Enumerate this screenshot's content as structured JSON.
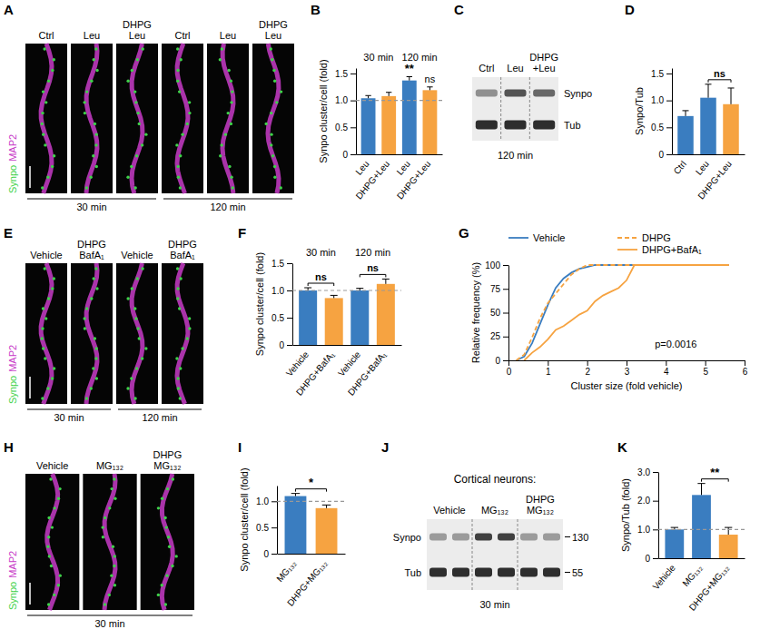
{
  "chart_data": [
    {
      "type": "bar",
      "ylabel": "Synpo cluster/cell (fold)",
      "categories": [
        "Leu",
        "DHPG+Leu",
        "Leu",
        "DHPG+Leu"
      ],
      "values": [
        1.04,
        1.08,
        1.37,
        1.19
      ],
      "errors": [
        0.05,
        0.07,
        0.07,
        0.06
      ],
      "colors": [
        "#3a7dc0",
        "#f6a341",
        "#3a7dc0",
        "#f6a341"
      ],
      "ylim": [
        0,
        1.6
      ],
      "yticks": [
        0,
        0.5,
        {
          "value": 1,
          "label": "1.0"
        },
        1.5
      ],
      "baseline": 1,
      "group_labels": [
        {
          "text": "30 min",
          "span": [
            0,
            1
          ]
        },
        {
          "text": "120 min",
          "span": [
            2,
            3
          ]
        }
      ],
      "significance": [
        {
          "text": "**",
          "span": [
            2
          ]
        },
        {
          "text": "ns",
          "span": [
            3
          ]
        }
      ]
    },
    {
      "type": "bar",
      "ylabel": "Synpo/Tub",
      "categories": [
        "Ctrl",
        "Leu",
        "DHPG+Leu"
      ],
      "values": [
        0.71,
        1.05,
        0.93
      ],
      "errors": [
        0.1,
        0.25,
        0.3
      ],
      "colors": [
        "#3a7dc0",
        "#3a7dc0",
        "#f6a341"
      ],
      "ylim": [
        0,
        1.6
      ],
      "yticks": [
        0,
        0.5,
        {
          "value": 1,
          "label": "1.0"
        },
        1.5
      ],
      "significance": [
        {
          "text": "ns",
          "span": [
            1,
            2
          ]
        }
      ]
    },
    {
      "type": "bar",
      "ylabel": "Synpo cluster/cell (fold)",
      "categories": [
        "Vehicle",
        "DHPG+BafA₁",
        "Vehicle",
        "DHPG+BafA₁"
      ],
      "values": [
        1.0,
        0.86,
        1.0,
        1.12
      ],
      "errors": [
        0.05,
        0.05,
        0.04,
        0.09
      ],
      "colors": [
        "#3a7dc0",
        "#f6a341",
        "#3a7dc0",
        "#f6a341"
      ],
      "ylim": [
        0,
        1.5
      ],
      "yticks": [
        0,
        0.5,
        {
          "value": 1,
          "label": "1.0"
        },
        1.5
      ],
      "baseline": 1,
      "group_labels": [
        {
          "text": "30 min",
          "span": [
            0,
            1
          ]
        },
        {
          "text": "120 min",
          "span": [
            2,
            3
          ]
        }
      ],
      "significance": [
        {
          "text": "ns",
          "span": [
            0,
            1
          ]
        },
        {
          "text": "ns",
          "span": [
            2,
            3
          ]
        }
      ]
    },
    {
      "type": "line",
      "ylabel": "Relative frequency (%)",
      "xlabel": "Cluster size (fold vehicle)",
      "xlim": [
        0,
        6
      ],
      "xticks": [
        0,
        1,
        2,
        3,
        4,
        5,
        6
      ],
      "ylim": [
        0,
        100
      ],
      "yticks": [
        0,
        25,
        50,
        75,
        100
      ],
      "legend": "top",
      "annotation": "p=0.0016",
      "series": [
        {
          "name": "Vehicle",
          "color": "#3a7dc0",
          "line_style": "solid",
          "x": [
            0.2,
            0.4,
            0.6,
            0.8,
            1.0,
            1.2,
            1.4,
            1.6,
            1.8,
            2.0,
            2.2,
            5.6
          ],
          "values": [
            0,
            4,
            18,
            38,
            58,
            76,
            86,
            92,
            96,
            98,
            100,
            100
          ]
        },
        {
          "name": "DHPG",
          "color": "#f6a341",
          "line_style": "dashed",
          "x": [
            0.2,
            0.4,
            0.6,
            0.8,
            1.0,
            1.2,
            1.4,
            1.6,
            1.8,
            2.0,
            2.2,
            5.6
          ],
          "values": [
            0,
            6,
            24,
            44,
            60,
            70,
            80,
            90,
            96,
            100,
            100,
            100
          ]
        },
        {
          "name": "DHPG+BafA₁",
          "color": "#f6a341",
          "line_style": "solid",
          "x": [
            0.4,
            0.6,
            0.8,
            1.0,
            1.2,
            1.4,
            1.6,
            1.8,
            2.0,
            2.2,
            2.4,
            2.6,
            2.8,
            3.0,
            3.2,
            5.6
          ],
          "values": [
            0,
            8,
            14,
            22,
            32,
            36,
            42,
            48,
            52,
            62,
            68,
            72,
            76,
            84,
            100,
            100
          ]
        }
      ]
    },
    {
      "type": "bar",
      "ylabel": "Synpo cluster/cell (fold)",
      "categories": [
        "MG₁₃₂",
        "DHPG+MG₁₃₂"
      ],
      "values": [
        1.1,
        0.87
      ],
      "errors": [
        0.05,
        0.06
      ],
      "colors": [
        "#3a7dc0",
        "#f6a341"
      ],
      "ylim": [
        0,
        1.3
      ],
      "yticks": [
        0,
        0.5,
        {
          "value": 1,
          "label": "1.0"
        }
      ],
      "baseline": 1,
      "significance": [
        {
          "text": "*",
          "span": [
            0,
            1
          ]
        }
      ]
    },
    {
      "type": "bar",
      "ylabel": "Synpo/Tub (fold)",
      "categories": [
        "Vehicle",
        "MG₁₃₂",
        "DHPG+MG₁₃₂"
      ],
      "values": [
        1.0,
        2.2,
        0.82
      ],
      "errors": [
        0.07,
        0.4,
        0.25
      ],
      "colors": [
        "#3a7dc0",
        "#3a7dc0",
        "#f6a341"
      ],
      "ylim": [
        0,
        3
      ],
      "yticks": [
        0,
        {
          "value": 1,
          "label": "1.0"
        },
        {
          "value": 2,
          "label": "2.0"
        },
        {
          "value": 3,
          "label": "3.0"
        }
      ],
      "baseline": 1,
      "significance": [
        {
          "text": "**",
          "span": [
            1,
            2
          ]
        }
      ]
    }
  ],
  "figure": {
    "chart_letters": [
      "B",
      "D",
      "F",
      "G",
      "I",
      "K"
    ],
    "images": [
      {
        "letter": "A",
        "stains": [
          {
            "text": "Synpo",
            "color": "#3fd24a"
          },
          {
            "text": "MAP2",
            "color": "#c83cc8"
          }
        ],
        "columns": [
          [
            "Ctrl"
          ],
          [
            "Leu"
          ],
          [
            "DHPG",
            "Leu"
          ],
          [
            "Ctrl"
          ],
          [
            "Leu"
          ],
          [
            "DHPG",
            "Leu"
          ]
        ],
        "times": [
          "30 min",
          "120 min"
        ]
      },
      {
        "letter": "E",
        "stains": [
          {
            "text": "Synpo",
            "color": "#3fd24a"
          },
          {
            "text": "MAP2",
            "color": "#c83cc8"
          }
        ],
        "columns": [
          [
            "Vehicle"
          ],
          [
            "DHPG",
            "BafA₁"
          ],
          [
            "Vehicle"
          ],
          [
            "DHPG",
            "BafA₁"
          ]
        ],
        "times": [
          "30 min",
          "120 min"
        ]
      },
      {
        "letter": "H",
        "stains": [
          {
            "text": "Synpo",
            "color": "#3fd24a"
          },
          {
            "text": "MAP2",
            "color": "#c83cc8"
          }
        ],
        "columns": [
          [
            "Vehicle"
          ],
          [
            "MG₁₃₂"
          ],
          [
            "DHPG",
            "MG₁₃₂"
          ]
        ],
        "times": [
          "30 min"
        ]
      }
    ],
    "blots": [
      {
        "letter": "C",
        "lanes": [
          [
            "Ctrl"
          ],
          [
            "Leu"
          ],
          [
            "DHPG",
            "+Leu"
          ]
        ],
        "rows": [
          "Synpo",
          "Tub"
        ],
        "time": "120 min"
      },
      {
        "letter": "J",
        "title": "Cortical neurons:",
        "lanes": [
          [
            "Vehicle"
          ],
          [
            "MG₁₃₂"
          ],
          [
            "DHPG",
            "MG₁₃₂"
          ]
        ],
        "rows": [
          "Synpo",
          "Tub"
        ],
        "mw": [
          130,
          55
        ],
        "time": "30 min"
      }
    ]
  }
}
